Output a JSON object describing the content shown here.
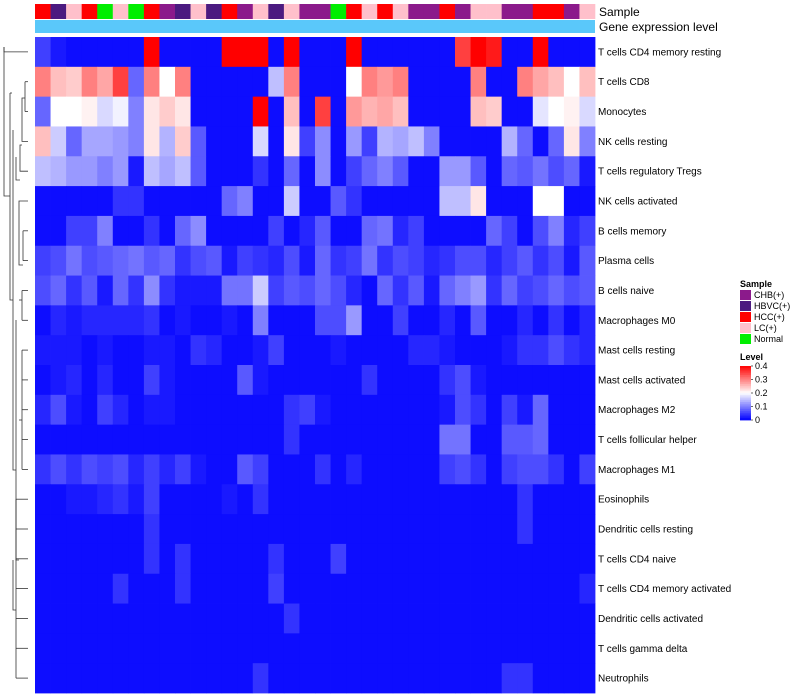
{
  "chart_data": {
    "type": "heatmap",
    "top_annotations": [
      "Sample",
      "Gene expression level"
    ],
    "rows": [
      "T cells CD4 memory resting",
      "T cells CD8",
      "Monocytes",
      "NK cells resting",
      "T cells regulatory  Tregs",
      "NK cells activated",
      "B cells memory",
      "Plasma cells",
      "B cells naive",
      "Macrophages M0",
      "Mast cells resting",
      "Mast cells activated",
      "Macrophages M2",
      "T cells follicular helper",
      "Macrophages M1",
      "Eosinophils",
      "Dendritic cells resting",
      "T cells CD4 naive",
      "T cells CD4 memory activated",
      "Dendritic cells activated",
      "T cells gamma delta",
      "Neutrophils"
    ],
    "sample_groups": [
      "HCC(+)",
      "HBVC(+)",
      "LC(+)",
      "HCC(+)",
      "Normal",
      "LC(+)",
      "Normal",
      "HCC(+)",
      "CHB(+)",
      "HBVC(+)",
      "LC(+)",
      "HBVC(+)",
      "HCC(+)",
      "CHB(+)",
      "LC(+)",
      "HBVC(+)",
      "LC(+)",
      "CHB(+)",
      "CHB(+)",
      "Normal",
      "HCC(+)",
      "LC(+)",
      "HCC(+)",
      "LC(+)",
      "CHB(+)",
      "CHB(+)",
      "HCC(+)",
      "CHB(+)",
      "LC(+)",
      "LC(+)",
      "CHB(+)",
      "CHB(+)",
      "HCC(+)",
      "HCC(+)",
      "CHB(+)",
      "LC(+)"
    ],
    "gene_expression_level": "Gene expression level",
    "level_domain": [
      0,
      0.4
    ],
    "level_ticks": [
      0.4,
      0.3,
      0.2,
      0.1,
      0
    ],
    "colors": {
      "low": "#0000ff",
      "mid": "#ffffff",
      "high": "#ff0000"
    },
    "values": [
      [
        0.05,
        0.02,
        0.01,
        0.01,
        0.01,
        0.01,
        0.01,
        0.4,
        0.01,
        0.01,
        0.01,
        0.01,
        0.4,
        0.4,
        0.4,
        0.01,
        0.4,
        0.01,
        0.01,
        0.01,
        0.4,
        0.01,
        0.01,
        0.01,
        0.01,
        0.01,
        0.01,
        0.35,
        0.4,
        0.38,
        0.01,
        0.01,
        0.4,
        0.01,
        0.01,
        0.01
      ],
      [
        0.3,
        0.25,
        0.24,
        0.3,
        0.27,
        0.35,
        0.08,
        0.3,
        0.2,
        0.3,
        0.01,
        0.01,
        0.01,
        0.01,
        0.01,
        0.15,
        0.3,
        0.01,
        0.01,
        0.01,
        0.2,
        0.3,
        0.28,
        0.3,
        0.01,
        0.01,
        0.01,
        0.01,
        0.3,
        0.01,
        0.01,
        0.3,
        0.27,
        0.25,
        0.2,
        0.25
      ],
      [
        0.08,
        0.2,
        0.2,
        0.21,
        0.17,
        0.19,
        0.1,
        0.22,
        0.24,
        0.22,
        0.01,
        0.01,
        0.01,
        0.01,
        0.4,
        0.01,
        0.25,
        0.01,
        0.35,
        0.01,
        0.28,
        0.26,
        0.27,
        0.25,
        0.01,
        0.01,
        0.01,
        0.01,
        0.25,
        0.24,
        0.01,
        0.01,
        0.18,
        0.2,
        0.21,
        0.17
      ],
      [
        0.25,
        0.16,
        0.08,
        0.13,
        0.13,
        0.12,
        0.1,
        0.22,
        0.14,
        0.24,
        0.07,
        0.01,
        0.01,
        0.01,
        0.17,
        0.01,
        0.22,
        0.05,
        0.11,
        0.01,
        0.12,
        0.05,
        0.14,
        0.13,
        0.15,
        0.1,
        0.01,
        0.01,
        0.01,
        0.01,
        0.14,
        0.08,
        0.01,
        0.08,
        0.22,
        0.1
      ],
      [
        0.15,
        0.14,
        0.12,
        0.12,
        0.1,
        0.12,
        0.02,
        0.15,
        0.13,
        0.15,
        0.07,
        0.01,
        0.01,
        0.01,
        0.04,
        0.01,
        0.08,
        0.01,
        0.11,
        0.01,
        0.05,
        0.08,
        0.1,
        0.07,
        0.01,
        0.01,
        0.12,
        0.12,
        0.07,
        0.01,
        0.08,
        0.07,
        0.09,
        0.06,
        0.08,
        0.02
      ],
      [
        0.01,
        0.01,
        0.01,
        0.01,
        0.01,
        0.04,
        0.04,
        0.01,
        0.01,
        0.01,
        0.01,
        0.01,
        0.08,
        0.1,
        0.01,
        0.01,
        0.16,
        0.01,
        0.01,
        0.07,
        0.04,
        0.01,
        0.01,
        0.01,
        0.01,
        0.01,
        0.15,
        0.15,
        0.22,
        0.01,
        0.01,
        0.01,
        0.2,
        0.2,
        0.01,
        0.01
      ],
      [
        0.01,
        0.01,
        0.05,
        0.05,
        0.1,
        0.01,
        0.01,
        0.04,
        0.01,
        0.08,
        0.11,
        0.01,
        0.01,
        0.01,
        0.01,
        0.05,
        0.01,
        0.03,
        0.07,
        0.01,
        0.01,
        0.08,
        0.09,
        0.03,
        0.05,
        0.01,
        0.01,
        0.01,
        0.01,
        0.08,
        0.05,
        0.01,
        0.06,
        0.1,
        0.03,
        0.05
      ],
      [
        0.05,
        0.06,
        0.09,
        0.06,
        0.07,
        0.08,
        0.09,
        0.07,
        0.08,
        0.04,
        0.06,
        0.07,
        0.02,
        0.05,
        0.04,
        0.03,
        0.06,
        0.02,
        0.08,
        0.04,
        0.05,
        0.09,
        0.04,
        0.06,
        0.05,
        0.03,
        0.04,
        0.06,
        0.06,
        0.03,
        0.05,
        0.07,
        0.04,
        0.06,
        0.02,
        0.07
      ],
      [
        0.06,
        0.08,
        0.04,
        0.07,
        0.02,
        0.08,
        0.04,
        0.11,
        0.04,
        0.02,
        0.02,
        0.02,
        0.09,
        0.09,
        0.16,
        0.05,
        0.07,
        0.06,
        0.08,
        0.06,
        0.03,
        0.01,
        0.08,
        0.04,
        0.07,
        0.02,
        0.08,
        0.1,
        0.12,
        0.04,
        0.08,
        0.05,
        0.06,
        0.08,
        0.06,
        0.07
      ],
      [
        0.01,
        0.03,
        0.02,
        0.03,
        0.03,
        0.03,
        0.03,
        0.04,
        0.01,
        0.02,
        0.01,
        0.01,
        0.02,
        0.01,
        0.1,
        0.01,
        0.01,
        0.01,
        0.06,
        0.06,
        0.12,
        0.01,
        0.01,
        0.05,
        0.01,
        0.01,
        0.03,
        0.01,
        0.07,
        0.01,
        0.01,
        0.03,
        0.01,
        0.04,
        0.01,
        0.03
      ],
      [
        0.02,
        0.02,
        0.02,
        0.01,
        0.02,
        0.01,
        0.01,
        0.02,
        0.02,
        0.01,
        0.04,
        0.03,
        0.01,
        0.01,
        0.02,
        0.05,
        0.01,
        0.01,
        0.01,
        0.02,
        0.01,
        0.01,
        0.01,
        0.01,
        0.03,
        0.03,
        0.02,
        0.01,
        0.01,
        0.01,
        0.02,
        0.04,
        0.04,
        0.06,
        0.04,
        0.03
      ],
      [
        0.01,
        0.02,
        0.03,
        0.01,
        0.03,
        0.01,
        0.01,
        0.05,
        0.02,
        0.01,
        0.01,
        0.01,
        0.01,
        0.07,
        0.02,
        0.01,
        0.01,
        0.01,
        0.01,
        0.01,
        0.01,
        0.04,
        0.01,
        0.01,
        0.01,
        0.01,
        0.04,
        0.06,
        0.02,
        0.01,
        0.01,
        0.01,
        0.01,
        0.01,
        0.01,
        0.01
      ],
      [
        0.03,
        0.06,
        0.02,
        0.01,
        0.05,
        0.03,
        0.01,
        0.02,
        0.02,
        0.01,
        0.01,
        0.01,
        0.01,
        0.01,
        0.01,
        0.01,
        0.04,
        0.05,
        0.02,
        0.01,
        0.01,
        0.01,
        0.01,
        0.01,
        0.01,
        0.01,
        0.02,
        0.06,
        0.04,
        0.01,
        0.05,
        0.02,
        0.08,
        0.01,
        0.01,
        0.01
      ],
      [
        0.01,
        0.01,
        0.01,
        0.01,
        0.01,
        0.01,
        0.01,
        0.01,
        0.01,
        0.01,
        0.01,
        0.01,
        0.01,
        0.01,
        0.01,
        0.01,
        0.04,
        0.01,
        0.01,
        0.01,
        0.01,
        0.01,
        0.01,
        0.01,
        0.01,
        0.01,
        0.09,
        0.09,
        0.01,
        0.01,
        0.07,
        0.07,
        0.08,
        0.01,
        0.01,
        0.01
      ],
      [
        0.04,
        0.06,
        0.04,
        0.06,
        0.05,
        0.06,
        0.03,
        0.05,
        0.03,
        0.05,
        0.02,
        0.01,
        0.01,
        0.07,
        0.05,
        0.01,
        0.01,
        0.01,
        0.04,
        0.01,
        0.03,
        0.01,
        0.01,
        0.01,
        0.01,
        0.01,
        0.05,
        0.06,
        0.04,
        0.01,
        0.05,
        0.06,
        0.06,
        0.04,
        0.01,
        0.05
      ],
      [
        0.01,
        0.01,
        0.02,
        0.02,
        0.03,
        0.04,
        0.02,
        0.05,
        0.01,
        0.01,
        0.01,
        0.01,
        0.02,
        0.01,
        0.04,
        0.01,
        0.01,
        0.01,
        0.01,
        0.01,
        0.01,
        0.01,
        0.01,
        0.01,
        0.01,
        0.01,
        0.01,
        0.01,
        0.01,
        0.01,
        0.01,
        0.04,
        0.01,
        0.01,
        0.01,
        0.01
      ],
      [
        0.01,
        0.01,
        0.01,
        0.01,
        0.01,
        0.01,
        0.01,
        0.04,
        0.01,
        0.01,
        0.01,
        0.01,
        0.01,
        0.01,
        0.01,
        0.01,
        0.01,
        0.01,
        0.01,
        0.01,
        0.01,
        0.01,
        0.01,
        0.01,
        0.01,
        0.01,
        0.01,
        0.01,
        0.01,
        0.01,
        0.01,
        0.04,
        0.01,
        0.01,
        0.01,
        0.01
      ],
      [
        0.01,
        0.01,
        0.01,
        0.01,
        0.01,
        0.01,
        0.01,
        0.04,
        0.01,
        0.04,
        0.01,
        0.01,
        0.01,
        0.01,
        0.01,
        0.04,
        0.01,
        0.01,
        0.01,
        0.05,
        0.01,
        0.01,
        0.01,
        0.01,
        0.01,
        0.01,
        0.01,
        0.01,
        0.01,
        0.01,
        0.01,
        0.01,
        0.01,
        0.01,
        0.01,
        0.01
      ],
      [
        0.01,
        0.01,
        0.01,
        0.01,
        0.01,
        0.04,
        0.01,
        0.01,
        0.01,
        0.04,
        0.01,
        0.01,
        0.01,
        0.01,
        0.01,
        0.05,
        0.01,
        0.01,
        0.01,
        0.01,
        0.01,
        0.01,
        0.01,
        0.01,
        0.01,
        0.01,
        0.01,
        0.01,
        0.01,
        0.01,
        0.01,
        0.01,
        0.01,
        0.01,
        0.01,
        0.03
      ],
      [
        0.01,
        0.01,
        0.01,
        0.01,
        0.01,
        0.01,
        0.01,
        0.01,
        0.01,
        0.01,
        0.01,
        0.01,
        0.01,
        0.01,
        0.01,
        0.01,
        0.04,
        0.01,
        0.01,
        0.01,
        0.01,
        0.01,
        0.01,
        0.01,
        0.01,
        0.01,
        0.01,
        0.01,
        0.01,
        0.01,
        0.01,
        0.01,
        0.01,
        0.01,
        0.01,
        0.01
      ],
      [
        0.01,
        0.01,
        0.01,
        0.01,
        0.01,
        0.01,
        0.01,
        0.01,
        0.01,
        0.01,
        0.01,
        0.01,
        0.01,
        0.01,
        0.01,
        0.01,
        0.01,
        0.01,
        0.01,
        0.01,
        0.01,
        0.01,
        0.01,
        0.01,
        0.01,
        0.01,
        0.01,
        0.01,
        0.01,
        0.01,
        0.01,
        0.01,
        0.01,
        0.01,
        0.01,
        0.01
      ],
      [
        0.01,
        0.01,
        0.01,
        0.01,
        0.01,
        0.01,
        0.01,
        0.01,
        0.01,
        0.01,
        0.01,
        0.01,
        0.01,
        0.01,
        0.04,
        0.01,
        0.01,
        0.01,
        0.01,
        0.01,
        0.01,
        0.01,
        0.01,
        0.01,
        0.01,
        0.01,
        0.01,
        0.01,
        0.01,
        0.01,
        0.04,
        0.04,
        0.01,
        0.01,
        0.01,
        0.01
      ]
    ],
    "legend_sample": {
      "title": "Sample",
      "entries": [
        {
          "label": "CHB(+)",
          "color": "#8b1a8b"
        },
        {
          "label": "HBVC(+)",
          "color": "#4b1a80"
        },
        {
          "label": "HCC(+)",
          "color": "#ff0000"
        },
        {
          "label": "LC(+)",
          "color": "#ffc0cb"
        },
        {
          "label": "Normal",
          "color": "#00ee00"
        }
      ]
    },
    "legend_level": {
      "title": "Level",
      "ticks": [
        "0.4",
        "0.3",
        "0.2",
        "0.1",
        "0"
      ]
    },
    "annotation_colors": {
      "gene_expression_level": "#5ac8fa"
    }
  }
}
